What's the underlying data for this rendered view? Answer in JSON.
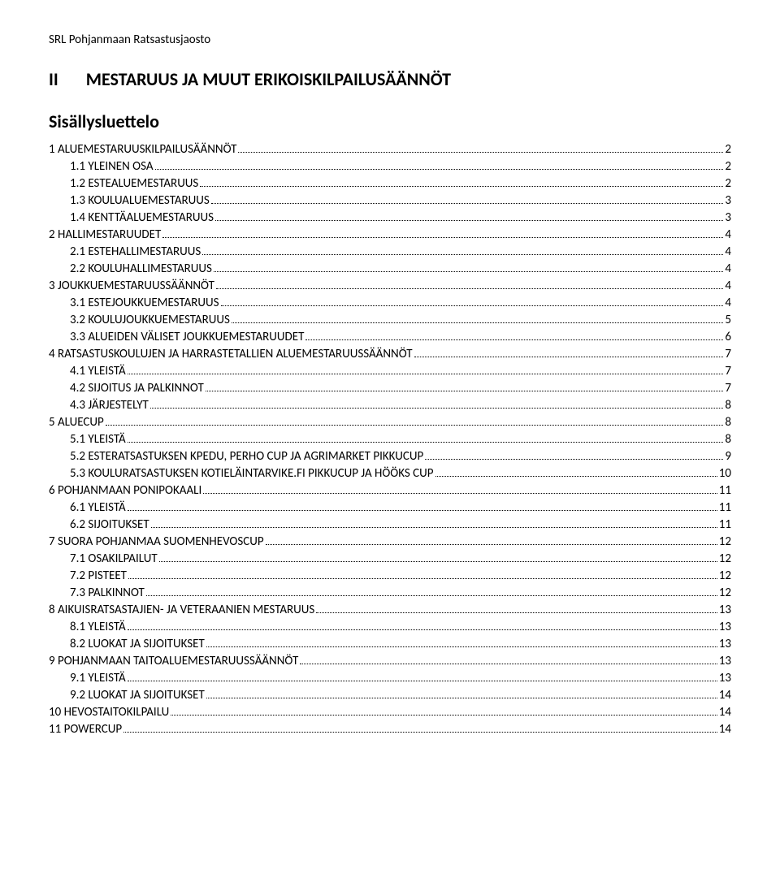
{
  "header": "SRL Pohjanmaan Ratsastusjaosto",
  "title_num": "II",
  "title_text": "MESTARUUS JA MUUT ERIKOISKILPAILUSÄÄNNÖT",
  "toc_title": "Sisällysluettelo",
  "entries": [
    {
      "label": "1 ALUEMESTARUUSKILPAILUSÄÄNNÖT",
      "page": "2",
      "level": 0
    },
    {
      "label": "1.1 YLEINEN OSA",
      "page": "2",
      "level": 1
    },
    {
      "label": "1.2 ESTEALUEMESTARUUS",
      "page": "2",
      "level": 1
    },
    {
      "label": "1.3 KOULUALUEMESTARUUS",
      "page": "3",
      "level": 1
    },
    {
      "label": "1.4 KENTTÄALUEMESTARUUS",
      "page": "3",
      "level": 1
    },
    {
      "label": "2 HALLIMESTARUUDET",
      "page": "4",
      "level": 0
    },
    {
      "label": "2.1 ESTEHALLIMESTARUUS",
      "page": "4",
      "level": 1
    },
    {
      "label": "2.2 KOULUHALLIMESTARUUS",
      "page": "4",
      "level": 1
    },
    {
      "label": "3 JOUKKUEMESTARUUSSÄÄNNÖT",
      "page": "4",
      "level": 0
    },
    {
      "label": "3.1 ESTEJOUKKUEMESTARUUS",
      "page": "4",
      "level": 1
    },
    {
      "label": "3.2 KOULUJOUKKUEMESTARUUS",
      "page": "5",
      "level": 1
    },
    {
      "label": "3.3 ALUEIDEN VÄLISET JOUKKUEMESTARUUDET",
      "page": "6",
      "level": 1
    },
    {
      "label": "4 RATSASTUSKOULUJEN JA HARRASTETALLIEN ALUEMESTARUUSSÄÄNNÖT",
      "page": "7",
      "level": 0
    },
    {
      "label": "4.1 YLEISTÄ",
      "page": "7",
      "level": 1
    },
    {
      "label": "4.2 SIJOITUS JA PALKINNOT",
      "page": "7",
      "level": 1
    },
    {
      "label": "4.3 JÄRJESTELYT",
      "page": "8",
      "level": 1
    },
    {
      "label": "5 ALUECUP",
      "page": "8",
      "level": 0
    },
    {
      "label": "5.1 YLEISTÄ",
      "page": "8",
      "level": 1
    },
    {
      "label": "5.2 ESTERATSASTUKSEN KPEDU, PERHO CUP JA AGRIMARKET PIKKUCUP",
      "page": "9",
      "level": 1
    },
    {
      "label": "5.3 KOULURATSASTUKSEN KOTIELÄINTARVIKE.FI PIKKUCUP JA HÖÖKS CUP",
      "page": "10",
      "level": 1
    },
    {
      "label": "6 POHJANMAAN PONIPOKAALI",
      "page": "11",
      "level": 0
    },
    {
      "label": "6.1 YLEISTÄ",
      "page": "11",
      "level": 1
    },
    {
      "label": "6.2 SIJOITUKSET",
      "page": "11",
      "level": 1
    },
    {
      "label": "7 SUORA POHJANMAA SUOMENHEVOSCUP",
      "page": "12",
      "level": 0
    },
    {
      "label": "7.1 OSAKILPAILUT",
      "page": "12",
      "level": 1
    },
    {
      "label": "7.2 PISTEET",
      "page": "12",
      "level": 1
    },
    {
      "label": "7.3 PALKINNOT",
      "page": "12",
      "level": 1
    },
    {
      "label": "8 AIKUISRATSASTAJIEN- JA VETERAANIEN MESTARUUS",
      "page": "13",
      "level": 0
    },
    {
      "label": "8.1 YLEISTÄ",
      "page": "13",
      "level": 1
    },
    {
      "label": "8.2 LUOKAT JA SIJOITUKSET",
      "page": "13",
      "level": 1
    },
    {
      "label": "9 POHJANMAAN TAITOALUEMESTARUUSSÄÄNNÖT",
      "page": "13",
      "level": 0
    },
    {
      "label": "9.1 YLEISTÄ",
      "page": "13",
      "level": 1
    },
    {
      "label": "9.2 LUOKAT JA SIJOITUKSET",
      "page": "14",
      "level": 1
    },
    {
      "label": "10 HEVOSTAITOKILPAILU",
      "page": "14",
      "level": 0
    },
    {
      "label": "11 POWERCUP",
      "page": "14",
      "level": 0
    }
  ]
}
